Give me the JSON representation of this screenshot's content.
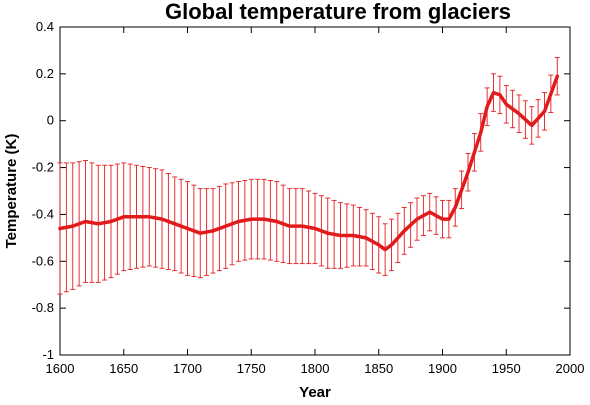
{
  "chart_data": {
    "type": "line",
    "title": "Global temperature from glaciers",
    "xlabel": "Year",
    "ylabel": "Temperature (K)",
    "xlim": [
      1600,
      2000
    ],
    "ylim": [
      -1,
      0.4
    ],
    "xticks": [
      1600,
      1650,
      1700,
      1750,
      1800,
      1850,
      1900,
      1950,
      2000
    ],
    "yticks": [
      -1,
      -0.8,
      -0.6,
      -0.4,
      -0.2,
      0,
      0.2,
      0.4
    ],
    "xtick_labels": [
      "1600",
      "1650",
      "1700",
      "1750",
      "1800",
      "1850",
      "1900",
      "1950",
      "2000"
    ],
    "ytick_labels": [
      "-1",
      "-0.8",
      "-0.6",
      "-0.4",
      "-0.2",
      "0",
      "0.2",
      "0.4"
    ],
    "grid": false,
    "line_color": "#e31a1c",
    "errorbar_color": "#e31a1c",
    "series": [
      {
        "x": [
          1600,
          1610,
          1620,
          1630,
          1640,
          1650,
          1660,
          1670,
          1680,
          1690,
          1700,
          1710,
          1720,
          1730,
          1740,
          1750,
          1760,
          1770,
          1780,
          1790,
          1800,
          1810,
          1820,
          1830,
          1840,
          1850,
          1855,
          1860,
          1870,
          1880,
          1890,
          1900,
          1905,
          1910,
          1920,
          1930,
          1935,
          1940,
          1945,
          1950,
          1960,
          1970,
          1980,
          1990
        ],
        "y": [
          -0.46,
          -0.45,
          -0.43,
          -0.44,
          -0.43,
          -0.41,
          -0.41,
          -0.41,
          -0.42,
          -0.44,
          -0.46,
          -0.48,
          -0.47,
          -0.45,
          -0.43,
          -0.42,
          -0.42,
          -0.43,
          -0.45,
          -0.45,
          -0.46,
          -0.48,
          -0.49,
          -0.49,
          -0.5,
          -0.53,
          -0.55,
          -0.53,
          -0.47,
          -0.42,
          -0.39,
          -0.42,
          -0.42,
          -0.37,
          -0.22,
          -0.05,
          0.06,
          0.12,
          0.11,
          0.07,
          0.03,
          -0.02,
          0.04,
          0.19
        ],
        "error": [
          0.28,
          0.27,
          0.26,
          0.25,
          0.24,
          0.23,
          0.22,
          0.21,
          0.21,
          0.2,
          0.2,
          0.19,
          0.18,
          0.18,
          0.17,
          0.17,
          0.17,
          0.17,
          0.16,
          0.16,
          0.15,
          0.15,
          0.14,
          0.13,
          0.12,
          0.12,
          0.11,
          0.11,
          0.1,
          0.09,
          0.08,
          0.08,
          0.08,
          0.08,
          0.08,
          0.08,
          0.08,
          0.08,
          0.08,
          0.08,
          0.08,
          0.08,
          0.08,
          0.08
        ]
      }
    ]
  }
}
